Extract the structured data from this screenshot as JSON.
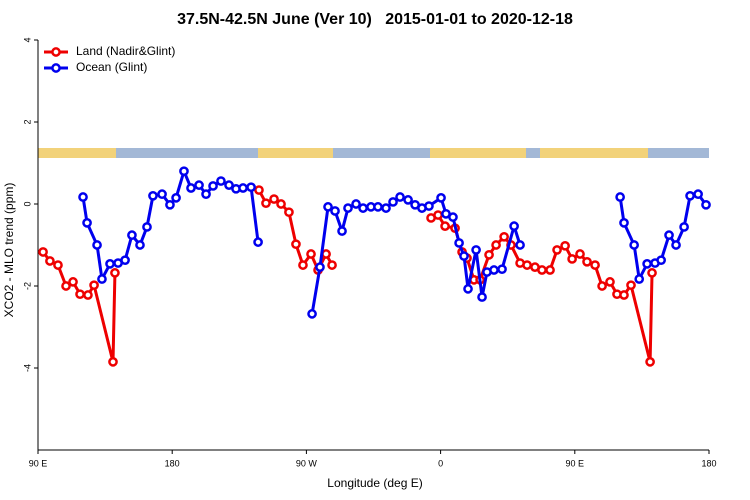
{
  "chart_data": {
    "type": "line",
    "title": "37.5N-42.5N June (Ver 10)   2015-01-01 to 2020-12-18",
    "xlabel": "Longitude (deg E)",
    "ylabel": "XCO2 - MLO trend (ppm)",
    "xlim": [
      90,
      540
    ],
    "ylim": [
      -6,
      4
    ],
    "xticks": [
      {
        "value": 90,
        "label": "90 E"
      },
      180,
      {
        "value": 270,
        "label": "90 W"
      },
      {
        "value": 360,
        "label": "0"
      },
      {
        "value": 450,
        "label": "90 E"
      },
      {
        "value": 540,
        "label": "180"
      }
    ],
    "yticks": [
      -4,
      -2,
      0,
      2,
      4
    ],
    "legend": "upper left",
    "series": [
      {
        "name": "Land (Nadir&Glint)",
        "color": "#ee0000",
        "x": [
          93.4,
          98.0,
          103.4,
          108.8,
          113.5,
          118.2,
          123.5,
          127.6,
          140.3,
          141.6,
          null,
          238.2,
          242.9,
          248.3,
          253.0,
          258.3,
          263.0,
          267.7,
          273.1,
          277.8,
          283.2,
          287.2,
          null,
          353.6,
          358.3,
          363.0,
          369.7,
          374.4,
          377.7,
          382.4,
          386.5,
          392.5,
          397.2,
          402.6,
          407.2,
          413.3,
          418.0,
          423.3,
          428.0,
          433.4,
          438.1,
          443.5,
          448.2,
          453.5,
          458.2,
          463.6,
          468.3,
          473.6,
          478.3,
          483.0,
          487.7,
          500.5,
          501.8
        ],
        "values": [
          -1.17,
          -1.39,
          -1.49,
          -2.0,
          -1.9,
          -2.2,
          -2.22,
          -1.98,
          -3.85,
          -1.68,
          null,
          0.34,
          0.02,
          0.12,
          0,
          -0.2,
          -0.98,
          -1.49,
          -1.22,
          -1.61,
          -1.22,
          -1.49,
          null,
          -0.34,
          -0.27,
          -0.54,
          -0.59,
          -1.17,
          -1.32,
          -1.85,
          -1.85,
          -1.24,
          -1.0,
          -0.8,
          -1.0,
          -1.44,
          -1.49,
          -1.54,
          -1.61,
          -1.61,
          -1.12,
          -1.02,
          -1.34,
          -1.22,
          -1.41,
          -1.49,
          -2.0,
          -1.9,
          -2.2,
          -2.22,
          -1.98,
          -3.85,
          -1.68
        ]
      },
      {
        "name": "Ocean (Glint)",
        "color": "#0000ee",
        "x": [
          120.2,
          122.9,
          129.6,
          132.9,
          138.3,
          143.7,
          148.4,
          153.0,
          158.4,
          163.1,
          167.1,
          173.2,
          178.5,
          182.6,
          187.9,
          192.6,
          198.0,
          202.7,
          207.4,
          212.7,
          218.1,
          222.8,
          227.5,
          232.9,
          237.6,
          null,
          273.8,
          279.1,
          284.5,
          289.2,
          293.9,
          297.9,
          303.3,
          308.0,
          313.3,
          318.0,
          323.4,
          328.1,
          332.8,
          338.2,
          342.9,
          347.5,
          352.2,
          360.3,
          363.6,
          368.3,
          372.4,
          375.7,
          378.4,
          383.8,
          387.8,
          391.1,
          395.8,
          401.2,
          409.3,
          413.3,
          null,
          480.4,
          483.0,
          489.8,
          493.2,
          498.5,
          503.8,
          507.9,
          513.2,
          517.9,
          523.3,
          527.3,
          532.7,
          538.0
        ],
        "values": [
          0.17,
          -0.46,
          -1.0,
          -1.83,
          -1.46,
          -1.44,
          -1.37,
          -0.76,
          -1.0,
          -0.56,
          0.2,
          0.24,
          -0.02,
          0.15,
          0.8,
          0.39,
          0.46,
          0.24,
          0.44,
          0.56,
          0.46,
          0.37,
          0.39,
          0.41,
          -0.93,
          null,
          -2.68,
          -1.54,
          -0.07,
          -0.17,
          -0.66,
          -0.1,
          0,
          -0.1,
          -0.07,
          -0.07,
          -0.1,
          0.05,
          0.17,
          0.1,
          -0.02,
          -0.1,
          -0.05,
          0.15,
          -0.24,
          -0.32,
          -0.95,
          -1.27,
          -2.07,
          -1.12,
          -2.27,
          -1.66,
          -1.61,
          -1.59,
          -0.54,
          -1.0,
          null,
          0.17,
          -0.46,
          -1.0,
          -1.83,
          -1.46,
          -1.44,
          -1.37,
          -0.76,
          -1.0,
          -0.56,
          0.2,
          0.24,
          -0.02
        ]
      }
    ]
  }
}
